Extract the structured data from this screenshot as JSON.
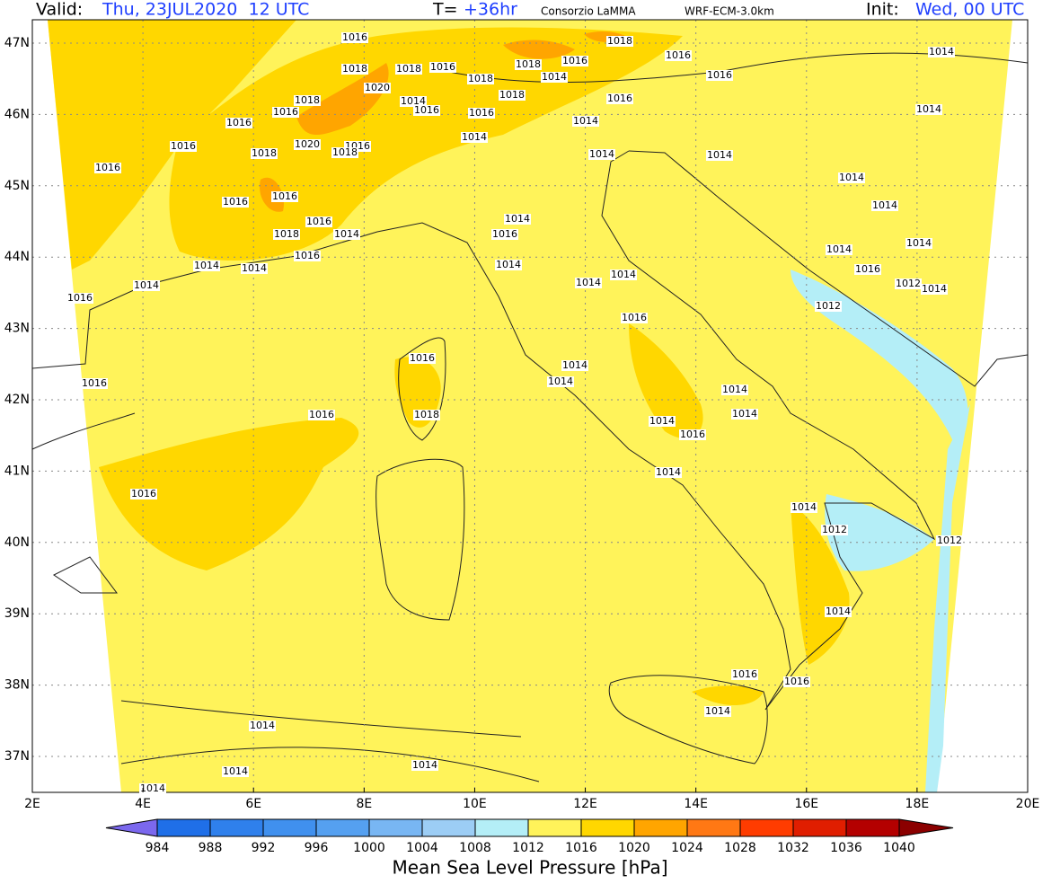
{
  "header": {
    "valid_label": "Valid:",
    "valid_time": "Thu, 23JUL2020  12 UTC",
    "t_label": "T=",
    "t_value": "+36hr",
    "source": "Consorzio LaMMA",
    "model": "WRF-ECM-3.0km",
    "init_label": "Init:",
    "init_time": "Wed, 00 UTC"
  },
  "map": {
    "lon_ticks": [
      "2E",
      "4E",
      "6E",
      "8E",
      "10E",
      "12E",
      "14E",
      "16E",
      "18E",
      "20E"
    ],
    "lat_ticks": [
      "37N",
      "38N",
      "39N",
      "40N",
      "41N",
      "42N",
      "43N",
      "44N",
      "45N",
      "46N",
      "47N"
    ],
    "contour_labels": [
      "1016",
      "1018",
      "1016",
      "1014",
      "1018",
      "1018",
      "1016",
      "1018",
      "1018",
      "1016",
      "1014",
      "1016",
      "1018",
      "1016",
      "1020",
      "1014",
      "1016",
      "1016",
      "1018",
      "1016",
      "1014",
      "1014",
      "1016",
      "1020",
      "1016",
      "1018",
      "1014",
      "1016",
      "1018",
      "1014",
      "1014",
      "1016",
      "1014",
      "1016",
      "1016",
      "1014",
      "1014",
      "1016",
      "1018",
      "1014",
      "1016",
      "1014",
      "1014",
      "1016",
      "1014",
      "1014",
      "1014",
      "1016",
      "1014",
      "1014",
      "1012",
      "1014",
      "1016",
      "1014",
      "1012",
      "1016",
      "1016",
      "1014",
      "1016",
      "1014",
      "1014",
      "1018",
      "1016",
      "1014",
      "1014",
      "1016",
      "1014",
      "1016",
      "1014",
      "1012",
      "1012",
      "1014",
      "1016",
      "1016",
      "1014",
      "1014",
      "1014",
      "1014",
      "1014"
    ]
  },
  "colorbar": {
    "levels": [
      984,
      988,
      992,
      996,
      1000,
      1004,
      1008,
      1012,
      1016,
      1020,
      1024,
      1028,
      1032,
      1036,
      1040
    ],
    "colors": [
      "#1f6fe8",
      "#2f80ec",
      "#4090ee",
      "#55a0f0",
      "#78b6f3",
      "#9ccdf5",
      "#b4eef7",
      "#fff35a",
      "#ffd700",
      "#ffa500",
      "#ff7814",
      "#ff3c00",
      "#e01e00",
      "#b40000"
    ],
    "below_color": "#7b68ee",
    "above_color": "#8b0000",
    "title": "Mean Sea Level Pressure [hPa]"
  }
}
